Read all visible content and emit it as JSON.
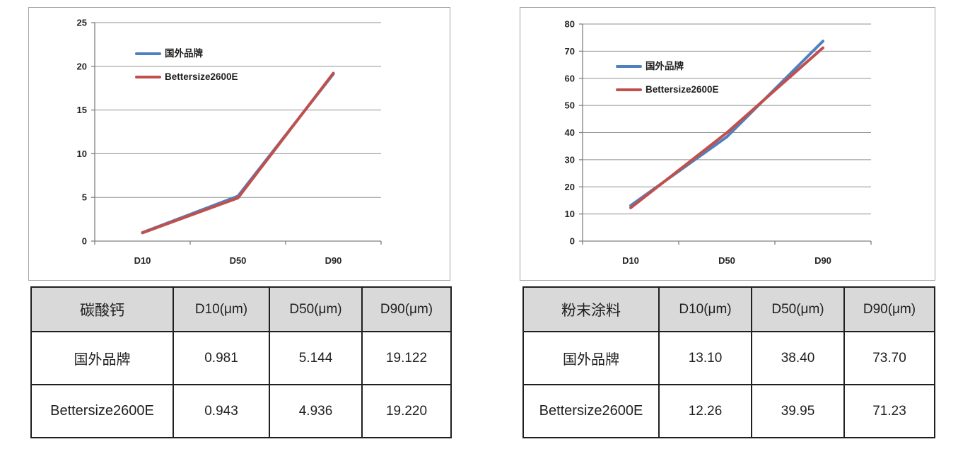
{
  "palette": {
    "series_blue": "#4F81BD",
    "series_red": "#C0504D",
    "gridline": "#919191",
    "axis": "#7f7f7f",
    "table_header_bg": "#d9d9d9",
    "panel_border": "#a3a3a3"
  },
  "chart_data": [
    {
      "type": "line",
      "categories": [
        "D10",
        "D50",
        "D90"
      ],
      "series": [
        {
          "name": "国外品牌",
          "color": "#4F81BD",
          "values": [
            0.981,
            5.144,
            19.122
          ]
        },
        {
          "name": "Bettersize2600E",
          "color": "#C0504D",
          "values": [
            0.943,
            4.936,
            19.22
          ]
        }
      ],
      "xlabel": "",
      "ylabel": "",
      "ylim": [
        0,
        25
      ],
      "y_ticks": [
        0,
        5,
        10,
        15,
        20,
        25
      ],
      "grid": true,
      "legend_position": "inside-top-left"
    },
    {
      "type": "line",
      "categories": [
        "D10",
        "D50",
        "D90"
      ],
      "series": [
        {
          "name": "国外品牌",
          "color": "#4F81BD",
          "values": [
            13.1,
            38.4,
            73.7
          ]
        },
        {
          "name": "Bettersize2600E",
          "color": "#C0504D",
          "values": [
            12.26,
            39.95,
            71.23
          ]
        }
      ],
      "xlabel": "",
      "ylabel": "",
      "ylim": [
        0,
        80
      ],
      "y_ticks": [
        0,
        10,
        20,
        30,
        40,
        50,
        60,
        70,
        80
      ],
      "grid": true,
      "legend_position": "inside-top-left"
    }
  ],
  "tables": [
    {
      "name_header": "碳酸钙",
      "col_headers": [
        "D10(μm)",
        "D50(μm)",
        "D90(μm)"
      ],
      "rows": [
        {
          "label": "国外品牌",
          "values": [
            "0.981",
            "5.144",
            "19.122"
          ]
        },
        {
          "label": "Bettersize2600E",
          "values": [
            "0.943",
            "4.936",
            "19.220"
          ]
        }
      ]
    },
    {
      "name_header": "粉末涂料",
      "col_headers": [
        "D10(μm)",
        "D50(μm)",
        "D90(μm)"
      ],
      "rows": [
        {
          "label": "国外品牌",
          "values": [
            "13.10",
            "38.40",
            "73.70"
          ]
        },
        {
          "label": "Bettersize2600E",
          "values": [
            "12.26",
            "39.95",
            "71.23"
          ]
        }
      ]
    }
  ]
}
